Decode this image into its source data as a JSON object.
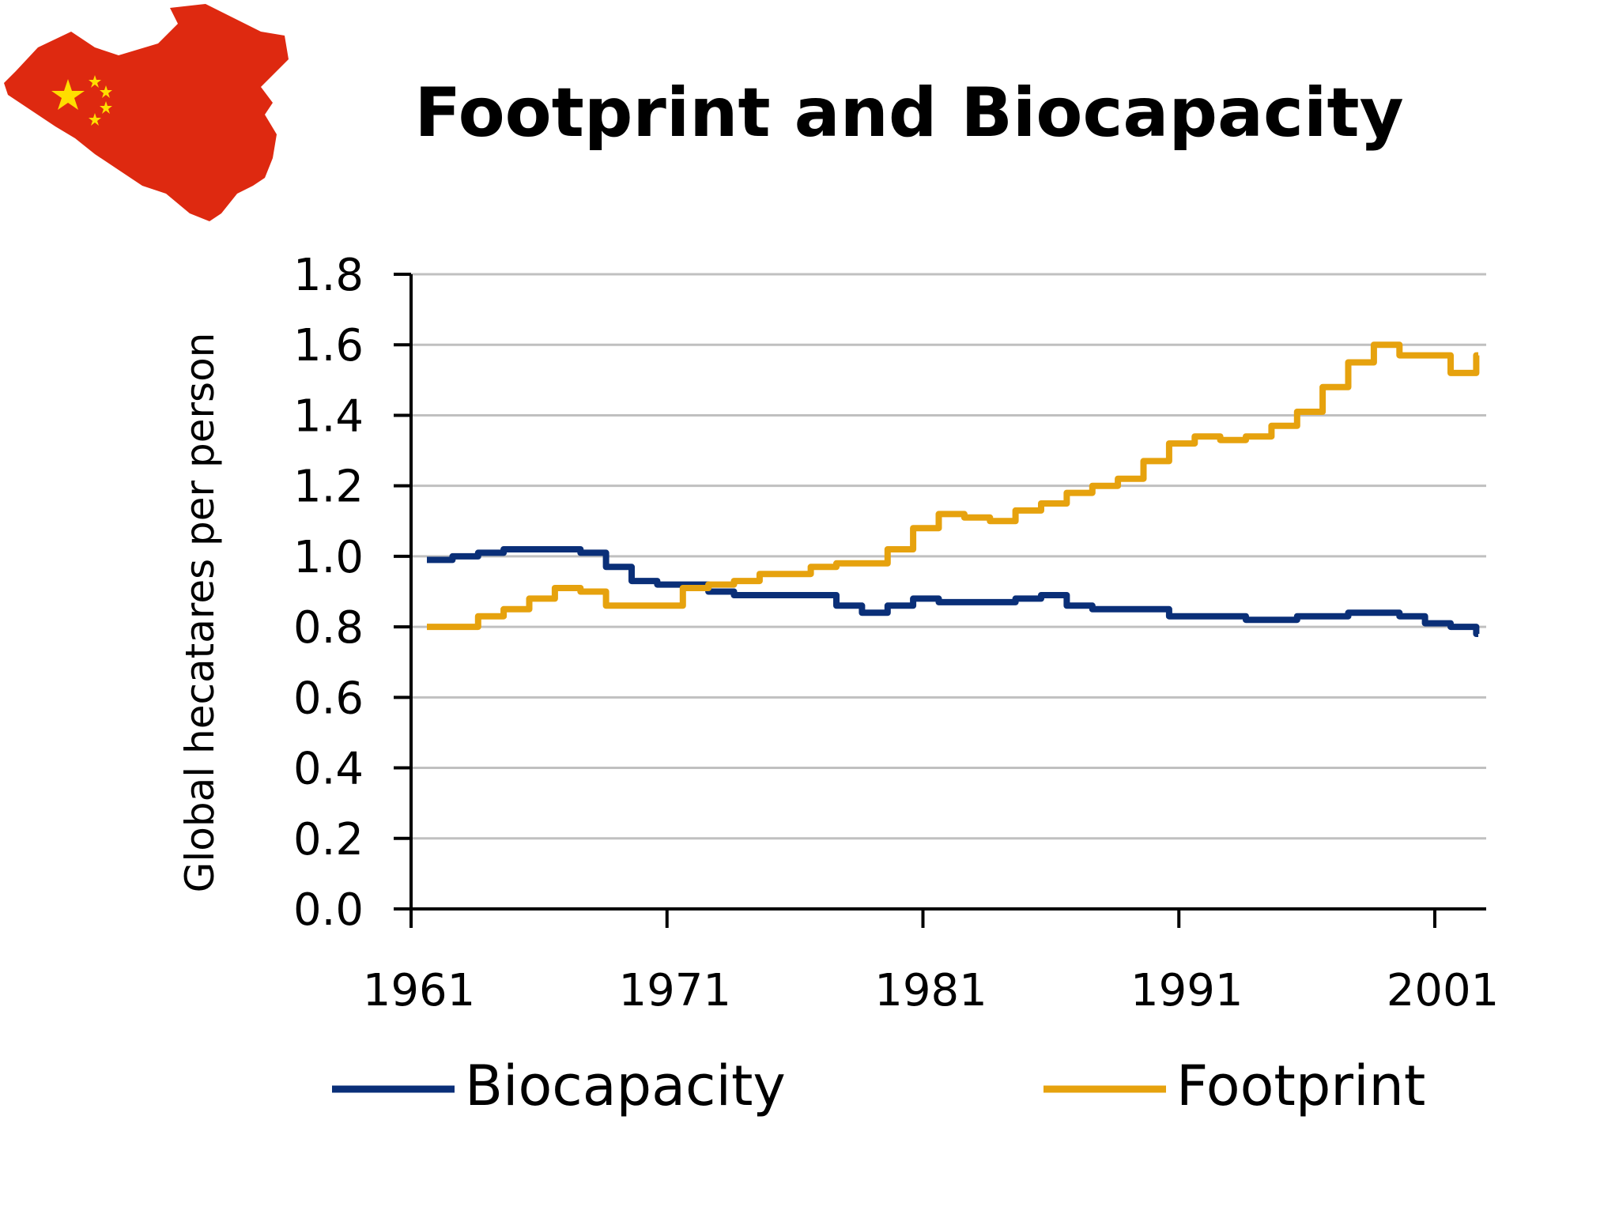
{
  "colors": {
    "biocapacity": "#0a2f78",
    "footprint": "#e6a20e",
    "grid": "#c0c0c0",
    "axis": "#000000",
    "map_red": "#de2910",
    "map_star": "#ffde00"
  },
  "logo": {
    "icon": "china-map-flag-icon"
  },
  "chart_data": {
    "type": "line",
    "title": "Footprint and Biocapacity",
    "xlabel": "",
    "ylabel": "Global hecatares per person",
    "ylim": [
      0,
      1.8
    ],
    "xlim": [
      1961,
      2003
    ],
    "yticks": [
      "0.0",
      "0.2",
      "0.4",
      "0.6",
      "0.8",
      "1.0",
      "1.2",
      "1.4",
      "1.6",
      "1.8"
    ],
    "xticks": [
      "1961",
      "1971",
      "1981",
      "1991",
      "2001"
    ],
    "grid": true,
    "legend_position": "bottom",
    "x": [
      1961,
      1962,
      1963,
      1964,
      1965,
      1966,
      1967,
      1968,
      1969,
      1970,
      1971,
      1972,
      1973,
      1974,
      1975,
      1976,
      1977,
      1978,
      1979,
      1980,
      1981,
      1982,
      1983,
      1984,
      1985,
      1986,
      1987,
      1988,
      1989,
      1990,
      1991,
      1992,
      1993,
      1994,
      1995,
      1996,
      1997,
      1998,
      1999,
      2000,
      2001,
      2002
    ],
    "series": [
      {
        "name": "Biocapacity",
        "values": [
          0.99,
          1.0,
          1.01,
          1.02,
          1.02,
          1.02,
          1.01,
          0.97,
          0.93,
          0.92,
          0.92,
          0.9,
          0.89,
          0.89,
          0.89,
          0.89,
          0.86,
          0.84,
          0.86,
          0.88,
          0.87,
          0.87,
          0.87,
          0.88,
          0.89,
          0.86,
          0.85,
          0.85,
          0.85,
          0.83,
          0.83,
          0.83,
          0.82,
          0.82,
          0.83,
          0.83,
          0.84,
          0.84,
          0.83,
          0.81,
          0.8,
          0.78
        ]
      },
      {
        "name": "Footprint",
        "values": [
          0.8,
          0.8,
          0.83,
          0.85,
          0.88,
          0.91,
          0.9,
          0.86,
          0.86,
          0.86,
          0.91,
          0.92,
          0.93,
          0.95,
          0.95,
          0.97,
          0.98,
          0.98,
          1.02,
          1.08,
          1.12,
          1.11,
          1.1,
          1.13,
          1.15,
          1.18,
          1.2,
          1.22,
          1.27,
          1.32,
          1.34,
          1.33,
          1.34,
          1.37,
          1.41,
          1.48,
          1.55,
          1.6,
          1.57,
          1.57,
          1.52,
          1.57
        ]
      }
    ]
  }
}
